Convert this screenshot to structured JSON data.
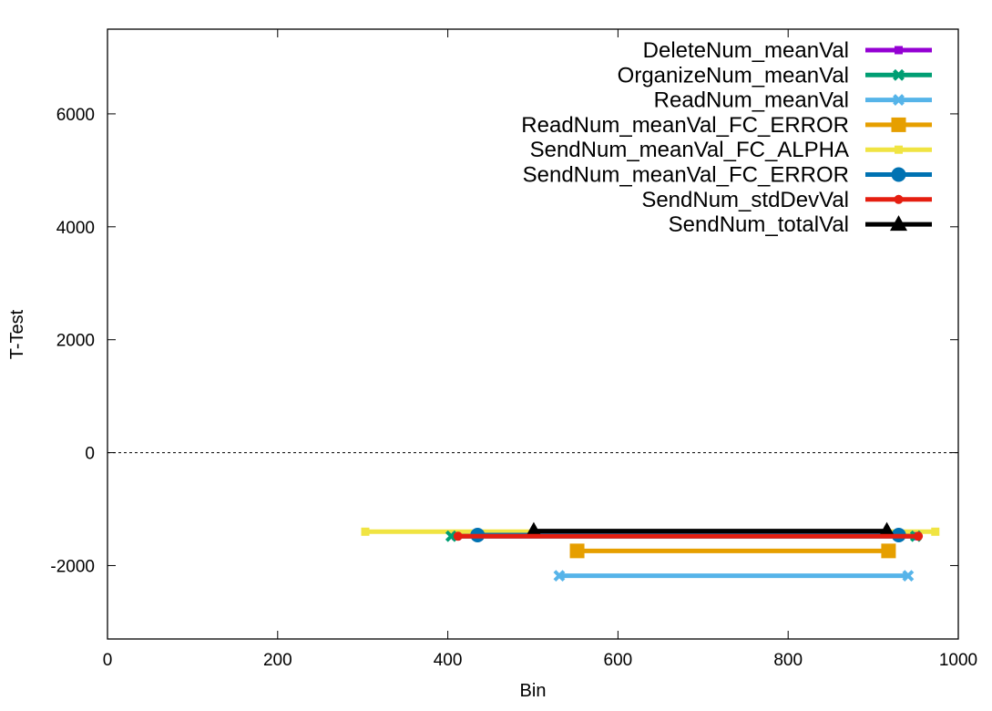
{
  "chart_data": {
    "type": "line",
    "title": "",
    "xlabel": "Bin",
    "ylabel": "T-Test",
    "xlim": [
      0,
      1000
    ],
    "ylim": [
      -3300,
      7500
    ],
    "xticks": [
      0,
      200,
      400,
      600,
      800,
      1000
    ],
    "yticks": [
      -2000,
      0,
      2000,
      4000,
      6000
    ],
    "zero_line": true,
    "grid": false,
    "legend_position": "top-right",
    "series": [
      {
        "name": "DeleteNum_meanVal",
        "color": "#9400d3",
        "marker": "small-square",
        "x": [
          410,
          950
        ],
        "y": [
          -1480,
          -1480
        ]
      },
      {
        "name": "OrganizeNum_meanVal",
        "color": "#009e73",
        "marker": "x-cross",
        "x": [
          404,
          950
        ],
        "y": [
          -1480,
          -1480
        ]
      },
      {
        "name": "ReadNum_meanVal",
        "color": "#56b4e9",
        "marker": "x-cross",
        "x": [
          531,
          941
        ],
        "y": [
          -2180,
          -2180
        ]
      },
      {
        "name": "ReadNum_meanVal_FC_ERROR",
        "color": "#e69f00",
        "marker": "square",
        "x": [
          552,
          918
        ],
        "y": [
          -1740,
          -1740
        ]
      },
      {
        "name": "SendNum_meanVal_FC_ALPHA",
        "color": "#f0e442",
        "marker": "small-square",
        "x": [
          303,
          973
        ],
        "y": [
          -1400,
          -1400
        ]
      },
      {
        "name": "SendNum_meanVal_FC_ERROR",
        "color": "#0072b2",
        "marker": "circle",
        "x": [
          435,
          930
        ],
        "y": [
          -1460,
          -1460
        ]
      },
      {
        "name": "SendNum_stdDevVal",
        "color": "#e51e10",
        "marker": "small-circle",
        "x": [
          412,
          953
        ],
        "y": [
          -1480,
          -1480
        ]
      },
      {
        "name": "SendNum_totalVal",
        "color": "#000000",
        "marker": "triangle",
        "x": [
          501,
          916
        ],
        "y": [
          -1390,
          -1390
        ]
      }
    ]
  }
}
